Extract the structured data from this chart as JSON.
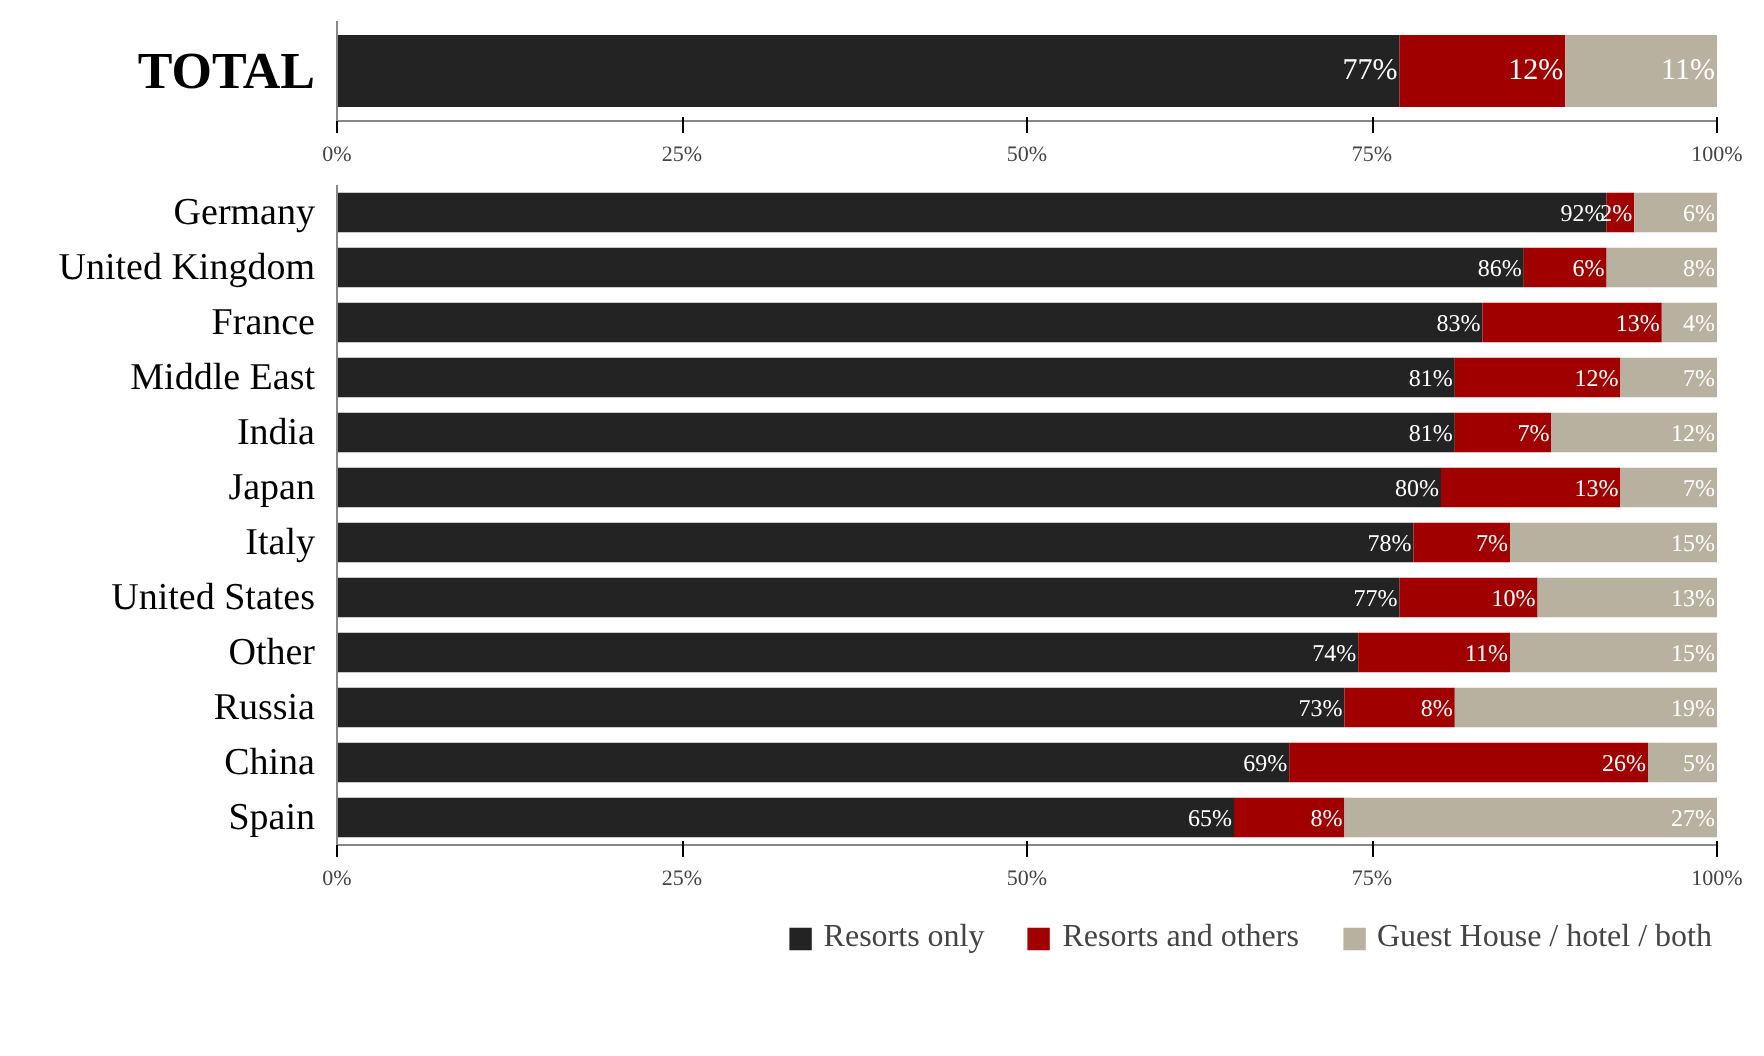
{
  "chart_data": [
    {
      "type": "bar",
      "orientation": "horizontal",
      "stacked": true,
      "categories": [
        "TOTAL"
      ],
      "series": [
        {
          "color": "#232323",
          "values": [
            77
          ],
          "value_labels": [
            "77%"
          ]
        },
        {
          "color": "#a00000",
          "values": [
            12
          ],
          "value_labels": [
            "12%"
          ]
        },
        {
          "color": "#b9b19f",
          "values": [
            11
          ],
          "value_labels": [
            "11%"
          ]
        }
      ],
      "xlim": [
        0,
        100
      ],
      "xticks": [
        {
          "value": 0,
          "label": "0%"
        },
        {
          "value": 25,
          "label": "25%"
        },
        {
          "value": 50,
          "label": "50%"
        },
        {
          "value": 75,
          "label": "75%"
        },
        {
          "value": 100,
          "label": "100%"
        }
      ]
    },
    {
      "type": "bar",
      "orientation": "horizontal",
      "stacked": true,
      "legend": "bottom",
      "categories": [
        "Germany",
        "United Kingdom",
        "France",
        "Middle East",
        "India",
        "Japan",
        "Italy",
        "United States",
        "Other",
        "Russia",
        "China",
        "Spain"
      ],
      "series": [
        {
          "name": "Resorts only",
          "color": "#232323",
          "values": [
            92,
            86,
            83,
            81,
            81,
            80,
            78,
            77,
            74,
            73,
            69,
            65
          ],
          "value_labels": [
            "92%",
            "86%",
            "83%",
            "81%",
            "81%",
            "80%",
            "78%",
            "77%",
            "74%",
            "73%",
            "69%",
            "65%"
          ]
        },
        {
          "name": "Resorts and others",
          "color": "#a00000",
          "values": [
            2,
            6,
            13,
            12,
            7,
            13,
            7,
            10,
            11,
            8,
            26,
            8
          ],
          "value_labels": [
            "2%",
            "6%",
            "13%",
            "12%",
            "7%",
            "13%",
            "7%",
            "10%",
            "11%",
            "8%",
            "26%",
            "8%"
          ]
        },
        {
          "name": "Guest House / hotel / both",
          "color": "#b9b19f",
          "values": [
            6,
            8,
            4,
            7,
            12,
            7,
            15,
            13,
            15,
            19,
            5,
            27
          ],
          "value_labels": [
            "6%",
            "8%",
            "4%",
            "7%",
            "12%",
            "7%",
            "15%",
            "13%",
            "15%",
            "19%",
            "5%",
            "27%"
          ]
        }
      ],
      "xlim": [
        0,
        100
      ],
      "xticks": [
        {
          "value": 0,
          "label": "0%"
        },
        {
          "value": 25,
          "label": "25%"
        },
        {
          "value": 50,
          "label": "50%"
        },
        {
          "value": 75,
          "label": "75%"
        },
        {
          "value": 100,
          "label": "100%"
        }
      ]
    }
  ]
}
